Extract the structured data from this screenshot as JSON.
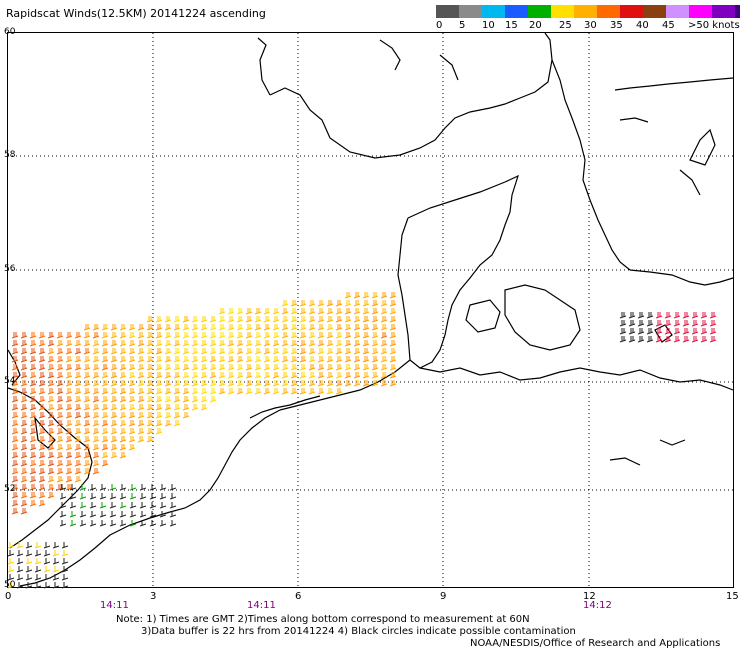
{
  "title": "Rapidscat Winds(12.5KM) 20141224 ascending",
  "colorbar": {
    "colors": [
      "#555555",
      "#8a8a8a",
      "#00b8f0",
      "#1a5cff",
      "#00b000",
      "#ffe000",
      "#ffb000",
      "#ff6a00",
      "#e01010",
      "#8a4010",
      "#d090ff",
      "#ff00ff",
      "#8000c0",
      "#400080"
    ],
    "labels": [
      "0",
      "5",
      "10",
      "15",
      "20",
      "25",
      "30",
      "35",
      "40",
      "45",
      ">50 knots"
    ]
  },
  "axes": {
    "lat_labels": [
      "60",
      "58",
      "56",
      "54",
      "52",
      "50"
    ],
    "lon_labels": [
      "0",
      "3",
      "6",
      "9",
      "12",
      "15"
    ],
    "time_labels": [
      "14:11",
      "14:11",
      "14:12"
    ],
    "time_color": "#800080"
  },
  "notes": {
    "line1": "Note: 1) Times are GMT 2)Times along bottom correspond to measurement at 60N",
    "line2": "3)Data buffer is 22 hrs from 20141224 4) Black circles indicate possible contamination",
    "line3": "NOAA/NESDIS/Office of Research and Applications"
  }
}
